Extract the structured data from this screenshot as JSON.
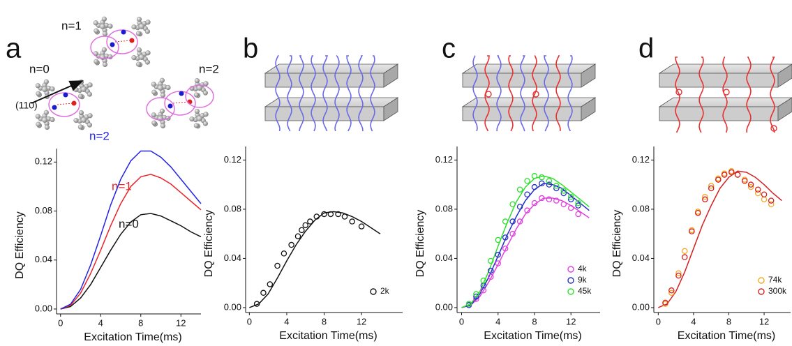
{
  "chart_data": [
    {
      "type": "line",
      "panel": "a",
      "xlabel": "Excitation Time(ms)",
      "ylabel": "DQ Efficiency",
      "schematic_labels": [
        "n=1",
        "n=0",
        "n=2",
        "(110)"
      ],
      "xlim": [
        -0.4,
        14
      ],
      "ylim": [
        -0.004,
        0.131
      ],
      "xticks": [
        0,
        4,
        8,
        12
      ],
      "yticks": [
        {
          "value": 0,
          "label": "0.00"
        },
        {
          "value": 0.04,
          "label": "0.04"
        },
        {
          "value": 0.08,
          "label": "0.08"
        },
        {
          "value": 0.12,
          "label": "0.12"
        }
      ],
      "x": [
        0,
        1,
        2,
        3,
        4,
        5,
        6,
        7,
        8,
        9,
        10,
        11,
        12,
        13,
        14
      ],
      "series": [
        {
          "name": "n=0",
          "color": "#111111",
          "values": [
            0,
            0.002,
            0.009,
            0.02,
            0.034,
            0.048,
            0.061,
            0.071,
            0.077,
            0.078,
            0.076,
            0.072,
            0.068,
            0.063,
            0.059
          ]
        },
        {
          "name": "n=1",
          "color": "#e8262a",
          "values": [
            0,
            0.003,
            0.013,
            0.029,
            0.048,
            0.068,
            0.086,
            0.1,
            0.108,
            0.11,
            0.107,
            0.102,
            0.095,
            0.088,
            0.081
          ]
        },
        {
          "name": "n=2",
          "color": "#2323e6",
          "values": [
            0,
            0.004,
            0.016,
            0.036,
            0.06,
            0.085,
            0.106,
            0.121,
            0.129,
            0.129,
            0.124,
            0.116,
            0.106,
            0.096,
            0.086
          ]
        }
      ]
    },
    {
      "type": "scatter",
      "panel": "b",
      "xlabel": "Excitation Time(ms)",
      "ylabel": "DQ Efficiency",
      "xlim": [
        -0.4,
        16.4
      ],
      "ylim": [
        -0.004,
        0.131
      ],
      "xticks": [
        0,
        4,
        8,
        12
      ],
      "yticks": [
        {
          "value": 0,
          "label": "0.00"
        },
        {
          "value": 0.04,
          "label": "0.04"
        },
        {
          "value": 0.08,
          "label": "0.08"
        },
        {
          "value": 0.12,
          "label": "0.12"
        }
      ],
      "fit_x": [
        0,
        1,
        2,
        3,
        4,
        5,
        6,
        7,
        8,
        9,
        10,
        11,
        12,
        13,
        14
      ],
      "series": [
        {
          "name": "2k",
          "color": "#111111",
          "x": [
            0.8,
            1.5,
            2.2,
            3,
            3.7,
            4.5,
            5.2,
            5.6,
            6,
            6.5,
            7.2,
            8,
            8.7,
            9.5,
            10.2,
            11,
            12
          ],
          "values": [
            0.003,
            0.012,
            0.019,
            0.034,
            0.044,
            0.051,
            0.058,
            0.063,
            0.067,
            0.07,
            0.074,
            0.076,
            0.076,
            0.076,
            0.074,
            0.07,
            0.066
          ],
          "fit": [
            0,
            0.003,
            0.011,
            0.024,
            0.038,
            0.051,
            0.062,
            0.071,
            0.077,
            0.078,
            0.077,
            0.074,
            0.07,
            0.065,
            0.06
          ]
        }
      ]
    },
    {
      "type": "scatter",
      "panel": "c",
      "xlabel": "Excitation Time(ms)",
      "ylabel": "DQ Efficiency",
      "xlim": [
        -0.5,
        15.2
      ],
      "ylim": [
        -0.004,
        0.131
      ],
      "xticks": [
        0,
        4,
        8,
        12
      ],
      "yticks": [
        {
          "value": 0,
          "label": "0.00"
        },
        {
          "value": 0.04,
          "label": "0.04"
        },
        {
          "value": 0.08,
          "label": "0.08"
        },
        {
          "value": 0.12,
          "label": "0.12"
        }
      ],
      "fit_x": [
        0,
        1,
        2,
        3,
        4,
        5,
        6,
        7,
        8,
        9,
        10,
        11,
        12,
        13,
        14
      ],
      "series": [
        {
          "name": "4k",
          "color": "#e040e0",
          "x": [
            0.8,
            1.6,
            2.4,
            3.2,
            4,
            4.8,
            5.6,
            6.4,
            7.2,
            8,
            8.8,
            9.6,
            10.4,
            11.2,
            12,
            12.8
          ],
          "values": [
            0.002,
            0.007,
            0.014,
            0.025,
            0.036,
            0.048,
            0.06,
            0.07,
            0.079,
            0.085,
            0.089,
            0.088,
            0.087,
            0.084,
            0.081,
            0.076
          ],
          "fit": [
            0,
            0.002,
            0.009,
            0.021,
            0.035,
            0.05,
            0.064,
            0.076,
            0.084,
            0.089,
            0.089,
            0.087,
            0.083,
            0.078,
            0.073
          ]
        },
        {
          "name": "9k",
          "color": "#2430c8",
          "x": [
            0.8,
            1.6,
            2.4,
            3.2,
            4,
            4.8,
            5.6,
            6.4,
            7.2,
            8,
            8.8,
            9.6,
            10.4,
            11.2,
            12,
            12.8
          ],
          "values": [
            0.002,
            0.009,
            0.018,
            0.03,
            0.043,
            0.057,
            0.07,
            0.082,
            0.092,
            0.098,
            0.101,
            0.1,
            0.097,
            0.093,
            0.088,
            0.083
          ],
          "fit": [
            0,
            0.002,
            0.011,
            0.025,
            0.042,
            0.059,
            0.074,
            0.087,
            0.096,
            0.101,
            0.1,
            0.097,
            0.091,
            0.085,
            0.079
          ]
        },
        {
          "name": "45k",
          "color": "#2ee02e",
          "x": [
            0.8,
            1.6,
            2.4,
            3.2,
            4,
            4.8,
            5.6,
            6.4,
            7.2,
            8,
            8.8,
            9.6,
            10.4,
            11.2,
            12,
            12.8
          ],
          "values": [
            0.003,
            0.011,
            0.022,
            0.038,
            0.055,
            0.07,
            0.084,
            0.096,
            0.103,
            0.107,
            0.106,
            0.103,
            0.099,
            0.095,
            0.09,
            0.085
          ],
          "fit": [
            0,
            0.003,
            0.013,
            0.03,
            0.05,
            0.069,
            0.086,
            0.098,
            0.105,
            0.107,
            0.105,
            0.1,
            0.094,
            0.088,
            0.082
          ]
        }
      ]
    },
    {
      "type": "scatter",
      "panel": "d",
      "xlabel": "Excitation Time(ms)",
      "ylabel": "DQ Efficiency",
      "xlim": [
        -0.5,
        15
      ],
      "ylim": [
        -0.004,
        0.131
      ],
      "xticks": [
        0,
        4,
        8,
        12
      ],
      "yticks": [
        {
          "value": 0,
          "label": "0.00"
        },
        {
          "value": 0.04,
          "label": "0.04"
        },
        {
          "value": 0.08,
          "label": "0.08"
        },
        {
          "value": 0.12,
          "label": "0.12"
        }
      ],
      "fit_x": [
        0,
        1,
        2,
        3,
        4,
        5,
        6,
        7,
        8,
        9,
        10,
        11,
        12,
        13,
        14
      ],
      "series": [
        {
          "name": "74k",
          "color": "#f5a623",
          "x": [
            0.8,
            1.5,
            2.3,
            3,
            3.8,
            4.5,
            5.3,
            6,
            6.8,
            7.5,
            8.3,
            9,
            9.8,
            10.5,
            11.3,
            12,
            12.8
          ],
          "values": [
            0.003,
            0.012,
            0.028,
            0.046,
            0.063,
            0.078,
            0.09,
            0.099,
            0.105,
            0.109,
            0.111,
            0.108,
            0.104,
            0.098,
            0.093,
            0.088,
            0.084
          ]
        },
        {
          "name": "300k",
          "color": "#d42020",
          "x": [
            0.8,
            1.5,
            2.3,
            3,
            3.8,
            4.5,
            5.3,
            6,
            6.8,
            7.5,
            8.3,
            9,
            9.8,
            10.5,
            11.3,
            12,
            12.8
          ],
          "values": [
            0.004,
            0.014,
            0.026,
            0.041,
            0.062,
            0.077,
            0.088,
            0.097,
            0.104,
            0.108,
            0.11,
            0.108,
            0.103,
            0.1,
            0.096,
            0.092,
            0.087
          ],
          "fit": [
            0,
            0.003,
            0.013,
            0.029,
            0.048,
            0.067,
            0.083,
            0.097,
            0.106,
            0.111,
            0.11,
            0.106,
            0.1,
            0.093,
            0.087
          ]
        }
      ]
    }
  ]
}
